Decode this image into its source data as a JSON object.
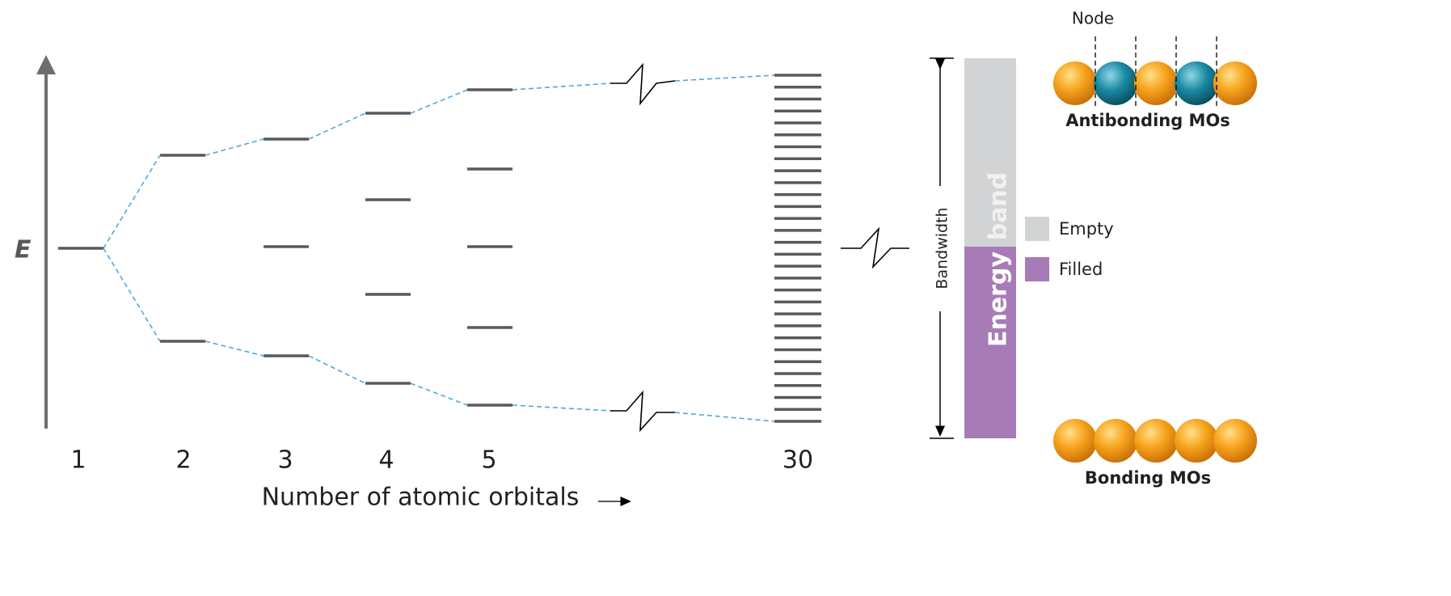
{
  "axis": {
    "y_label": "E",
    "x_label": "Number of atomic orbitals"
  },
  "columns": [
    "1",
    "2",
    "3",
    "4",
    "5",
    "30"
  ],
  "band": {
    "energy": "Energy",
    "band": "band",
    "bandwidth": "Bandwidth"
  },
  "legend": [
    {
      "label": "Empty",
      "color": "#d1d3d4"
    },
    {
      "label": "Filled",
      "color": "#a77bb5"
    }
  ],
  "orbitals": {
    "node": "Node",
    "antibonding": "Antibonding MOs",
    "bonding": "Bonding MOs"
  }
}
